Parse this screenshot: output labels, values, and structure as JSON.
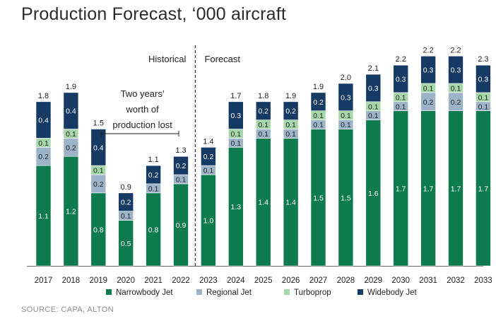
{
  "title": "Production Forecast, ‘000 aircraft",
  "source": "SOURCE: CAPA, ALTON",
  "colors": {
    "narrowbody": "#0e7a4f",
    "regional": "#9cb3c8",
    "turboprop": "#a6d7a8",
    "widebody": "#153a63",
    "text_dark": "#222222",
    "axis": "#555555"
  },
  "chart_data": {
    "type": "bar",
    "stacked": true,
    "categories": [
      "2017",
      "2018",
      "2019",
      "2020",
      "2021",
      "2022",
      "2023",
      "2024",
      "2025",
      "2026",
      "2027",
      "2028",
      "2029",
      "2030",
      "2031",
      "2032",
      "2033"
    ],
    "series": [
      {
        "name": "Narrowbody Jet",
        "color": "#0e7a4f",
        "values": [
          1.1,
          1.2,
          0.8,
          0.5,
          0.8,
          0.9,
          1.0,
          1.3,
          1.4,
          1.4,
          1.5,
          1.5,
          1.6,
          1.7,
          1.7,
          1.7,
          1.7
        ]
      },
      {
        "name": "Regional Jet",
        "color": "#9cb3c8",
        "values": [
          0.2,
          0.2,
          0.2,
          0.1,
          0.1,
          0.1,
          0.1,
          0.1,
          0.1,
          0.1,
          0.1,
          0.1,
          0.1,
          0.1,
          0.2,
          0.2,
          0.1
        ]
      },
      {
        "name": "Turboprop",
        "color": "#a6d7a8",
        "values": [
          0.1,
          0.1,
          0.1,
          0.0,
          0.0,
          0.0,
          0.0,
          0.1,
          0.1,
          0.1,
          0.1,
          0.1,
          0.1,
          0.1,
          0.1,
          0.1,
          0.1
        ]
      },
      {
        "name": "Widebody Jet",
        "color": "#153a63",
        "values": [
          0.4,
          0.4,
          0.4,
          0.2,
          0.2,
          0.2,
          0.2,
          0.3,
          0.2,
          0.2,
          0.2,
          0.3,
          0.3,
          0.3,
          0.3,
          0.3,
          0.3
        ]
      }
    ],
    "totals": [
      1.8,
      1.9,
      1.5,
      0.9,
      1.1,
      1.3,
      1.4,
      1.7,
      1.8,
      1.9,
      1.9,
      2.0,
      2.1,
      2.2,
      2.2,
      2.2,
      2.3
    ],
    "annotations": {
      "historical_label": "Historical",
      "forecast_label": "Forecast",
      "lost_line1": "Two years’",
      "lost_line2": "worth of",
      "lost_line3": "production lost"
    },
    "legend_position": "bottom",
    "grid": false,
    "ylim": [
      0,
      2.4
    ]
  }
}
